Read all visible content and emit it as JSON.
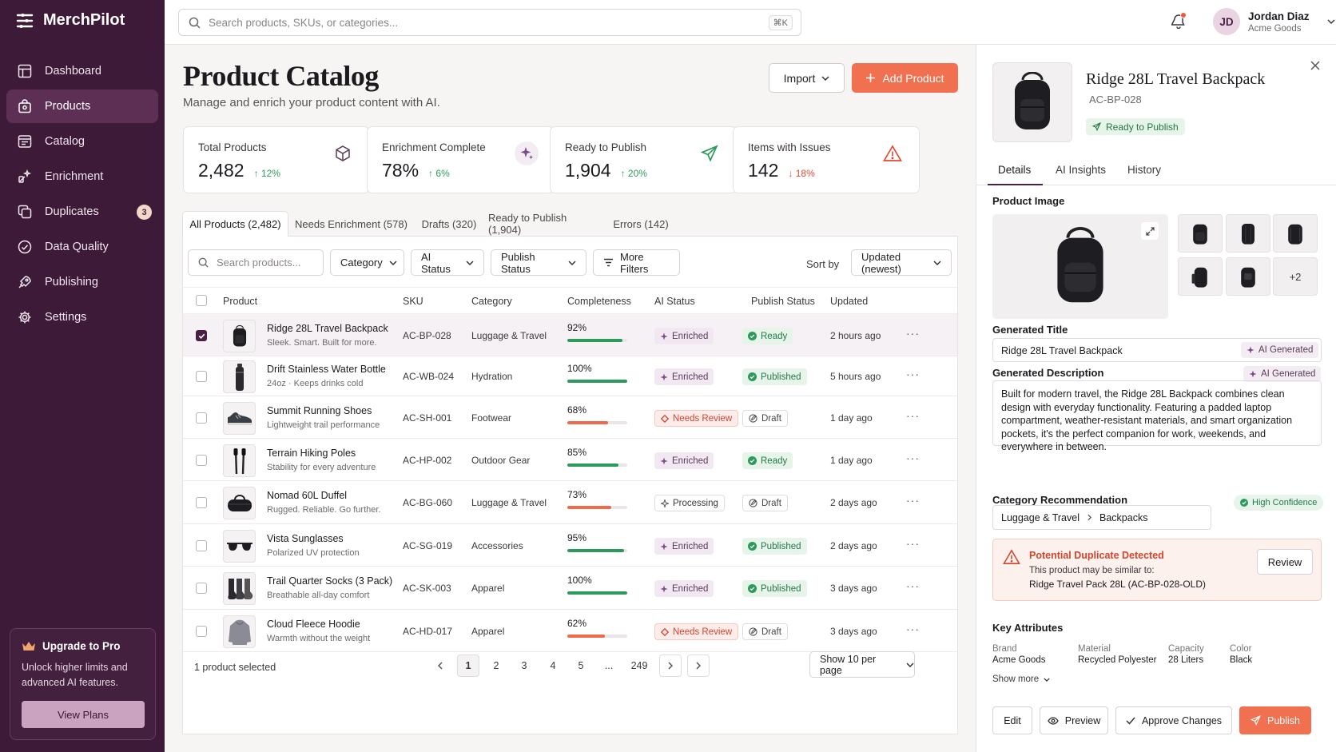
{
  "app": {
    "name": "MerchPilot"
  },
  "sidebar": {
    "items": [
      {
        "label": "Dashboard",
        "icon": "dashboard-icon"
      },
      {
        "label": "Products",
        "icon": "bag-icon",
        "active": true
      },
      {
        "label": "Catalog",
        "icon": "catalog-icon"
      },
      {
        "label": "Enrichment",
        "icon": "enrichment-icon"
      },
      {
        "label": "Duplicates",
        "icon": "duplicates-icon",
        "badge": "3"
      },
      {
        "label": "Data Quality",
        "icon": "data-quality-icon"
      },
      {
        "label": "Publishing",
        "icon": "publishing-icon"
      },
      {
        "label": "Settings",
        "icon": "gear-icon"
      }
    ],
    "upgrade": {
      "title": "Upgrade to Pro",
      "text": "Unlock higher limits and advanced AI features.",
      "button": "View Plans"
    }
  },
  "topbar": {
    "search_placeholder": "Search products, SKUs, or categories...",
    "shortcut": "⌘K",
    "user": {
      "initials": "JD",
      "name": "Jordan Diaz",
      "org": "Acme Goods"
    }
  },
  "header": {
    "title": "Product Catalog",
    "subtitle": "Manage and enrich your product content with AI.",
    "import_label": "Import",
    "add_label": "Add Product"
  },
  "stats": [
    {
      "label": "Total Products",
      "value": "2,482",
      "delta": "12%",
      "direction": "up",
      "icon": "box-icon"
    },
    {
      "label": "Enrichment Complete",
      "value": "78%",
      "delta": "6%",
      "direction": "up",
      "icon": "sparkle-icon"
    },
    {
      "label": "Ready to Publish",
      "value": "1,904",
      "delta": "20%",
      "direction": "up",
      "icon": "send-icon"
    },
    {
      "label": "Items with Issues",
      "value": "142",
      "delta": "18%",
      "direction": "down",
      "icon": "warning-icon"
    }
  ],
  "tabs": [
    "All Products (2,482)",
    "Needs Enrichment (578)",
    "Drafts (320)",
    "Ready to Publish (1,904)",
    "Errors (142)"
  ],
  "filters": {
    "search_placeholder": "Search products...",
    "category": "Category",
    "ai_status": "AI Status",
    "publish_status": "Publish Status",
    "more": "More Filters",
    "sort_label": "Sort by",
    "sort_value": "Updated (newest)"
  },
  "table": {
    "columns": [
      "Product",
      "SKU",
      "Category",
      "Completeness",
      "AI Status",
      "Publish Status",
      "Updated"
    ],
    "rows": [
      {
        "name": "Ridge 28L Travel Backpack",
        "desc": "Sleek. Smart. Built for more.",
        "sku": "AC-BP-028",
        "category": "Luggage & Travel",
        "completeness": "92%",
        "pct": 92,
        "ai": "Enriched",
        "publish": "Ready",
        "updated": "2 hours ago",
        "selected": true,
        "thumb": "backpack-icon"
      },
      {
        "name": "Drift Stainless Water Bottle",
        "desc": "24oz · Keeps drinks cold",
        "sku": "AC-WB-024",
        "category": "Hydration",
        "completeness": "100%",
        "pct": 100,
        "ai": "Enriched",
        "publish": "Published",
        "updated": "5 hours ago",
        "selected": false,
        "thumb": "bottle-icon"
      },
      {
        "name": "Summit Running Shoes",
        "desc": "Lightweight trail performance",
        "sku": "AC-SH-001",
        "category": "Footwear",
        "completeness": "68%",
        "pct": 68,
        "ai": "Needs Review",
        "publish": "Draft",
        "updated": "1 day ago",
        "selected": false,
        "thumb": "shoe-icon"
      },
      {
        "name": "Terrain Hiking Poles",
        "desc": "Stability for every adventure",
        "sku": "AC-HP-002",
        "category": "Outdoor Gear",
        "completeness": "85%",
        "pct": 85,
        "ai": "Enriched",
        "publish": "Ready",
        "updated": "1 day ago",
        "selected": false,
        "thumb": "poles-icon"
      },
      {
        "name": "Nomad 60L Duffel",
        "desc": "Rugged. Reliable. Go further.",
        "sku": "AC-BG-060",
        "category": "Luggage & Travel",
        "completeness": "73%",
        "pct": 73,
        "ai": "Processing",
        "publish": "Draft",
        "updated": "2 days ago",
        "selected": false,
        "thumb": "duffel-icon"
      },
      {
        "name": "Vista Sunglasses",
        "desc": "Polarized UV protection",
        "sku": "AC-SG-019",
        "category": "Accessories",
        "completeness": "95%",
        "pct": 95,
        "ai": "Enriched",
        "publish": "Published",
        "updated": "2 days ago",
        "selected": false,
        "thumb": "sunglasses-icon"
      },
      {
        "name": "Trail Quarter Socks (3 Pack)",
        "desc": "Breathable all-day comfort",
        "sku": "AC-SK-003",
        "category": "Apparel",
        "completeness": "100%",
        "pct": 100,
        "ai": "Enriched",
        "publish": "Published",
        "updated": "3 days ago",
        "selected": false,
        "thumb": "socks-icon"
      },
      {
        "name": "Cloud Fleece Hoodie",
        "desc": "Warmth without the weight",
        "sku": "AC-HD-017",
        "category": "Apparel",
        "completeness": "62%",
        "pct": 62,
        "ai": "Needs Review",
        "publish": "Draft",
        "updated": "3 days ago",
        "selected": false,
        "thumb": "hoodie-icon"
      }
    ]
  },
  "footer": {
    "selected_text": "1 product selected",
    "pages": [
      "1",
      "2",
      "3",
      "4",
      "5",
      "...",
      "249"
    ],
    "current_page": "1",
    "per_page": "Show 10 per page"
  },
  "detail": {
    "title": "Ridge 28L Travel Backpack",
    "sku": "AC-BP-028",
    "status": "Ready to Publish",
    "tabs": [
      "Details",
      "AI Insights",
      "History"
    ],
    "product_image_label": "Product Image",
    "extra_images": "+2",
    "generated_title_label": "Generated Title",
    "generated_title": "Ridge 28L Travel Backpack",
    "ai_tag": "AI Generated",
    "generated_desc_label": "Generated Description",
    "generated_desc": "Built for modern travel, the Ridge 28L Backpack combines clean design with everyday functionality. Featuring a padded laptop compartment, weather-resistant materials, and smart organization pockets, it's the perfect companion for work, weekends, and everywhere in between.",
    "category_label": "Category Recommendation",
    "confidence": "High Confidence",
    "category_path": [
      "Luggage & Travel",
      "Backpacks"
    ],
    "duplicate": {
      "title": "Potential Duplicate Detected",
      "text": "This product may be similar to:",
      "ref_name": "Ridge Travel Pack 28L",
      "ref_sku": "(AC-BP-028-OLD)",
      "button": "Review"
    },
    "attributes_label": "Key Attributes",
    "attributes": [
      {
        "label": "Brand",
        "value": "Acme Goods"
      },
      {
        "label": "Material",
        "value": "Recycled Polyester"
      },
      {
        "label": "Capacity",
        "value": "28 Liters"
      },
      {
        "label": "Color",
        "value": "Black"
      }
    ],
    "show_more": "Show more",
    "actions": {
      "edit": "Edit",
      "preview": "Preview",
      "approve": "Approve Changes",
      "publish": "Publish"
    }
  },
  "colors": {
    "sidebar": "#3d1a37",
    "accent": "#f0704f",
    "primary": "#4a1f45",
    "success": "#25784a",
    "danger": "#d2452e"
  }
}
